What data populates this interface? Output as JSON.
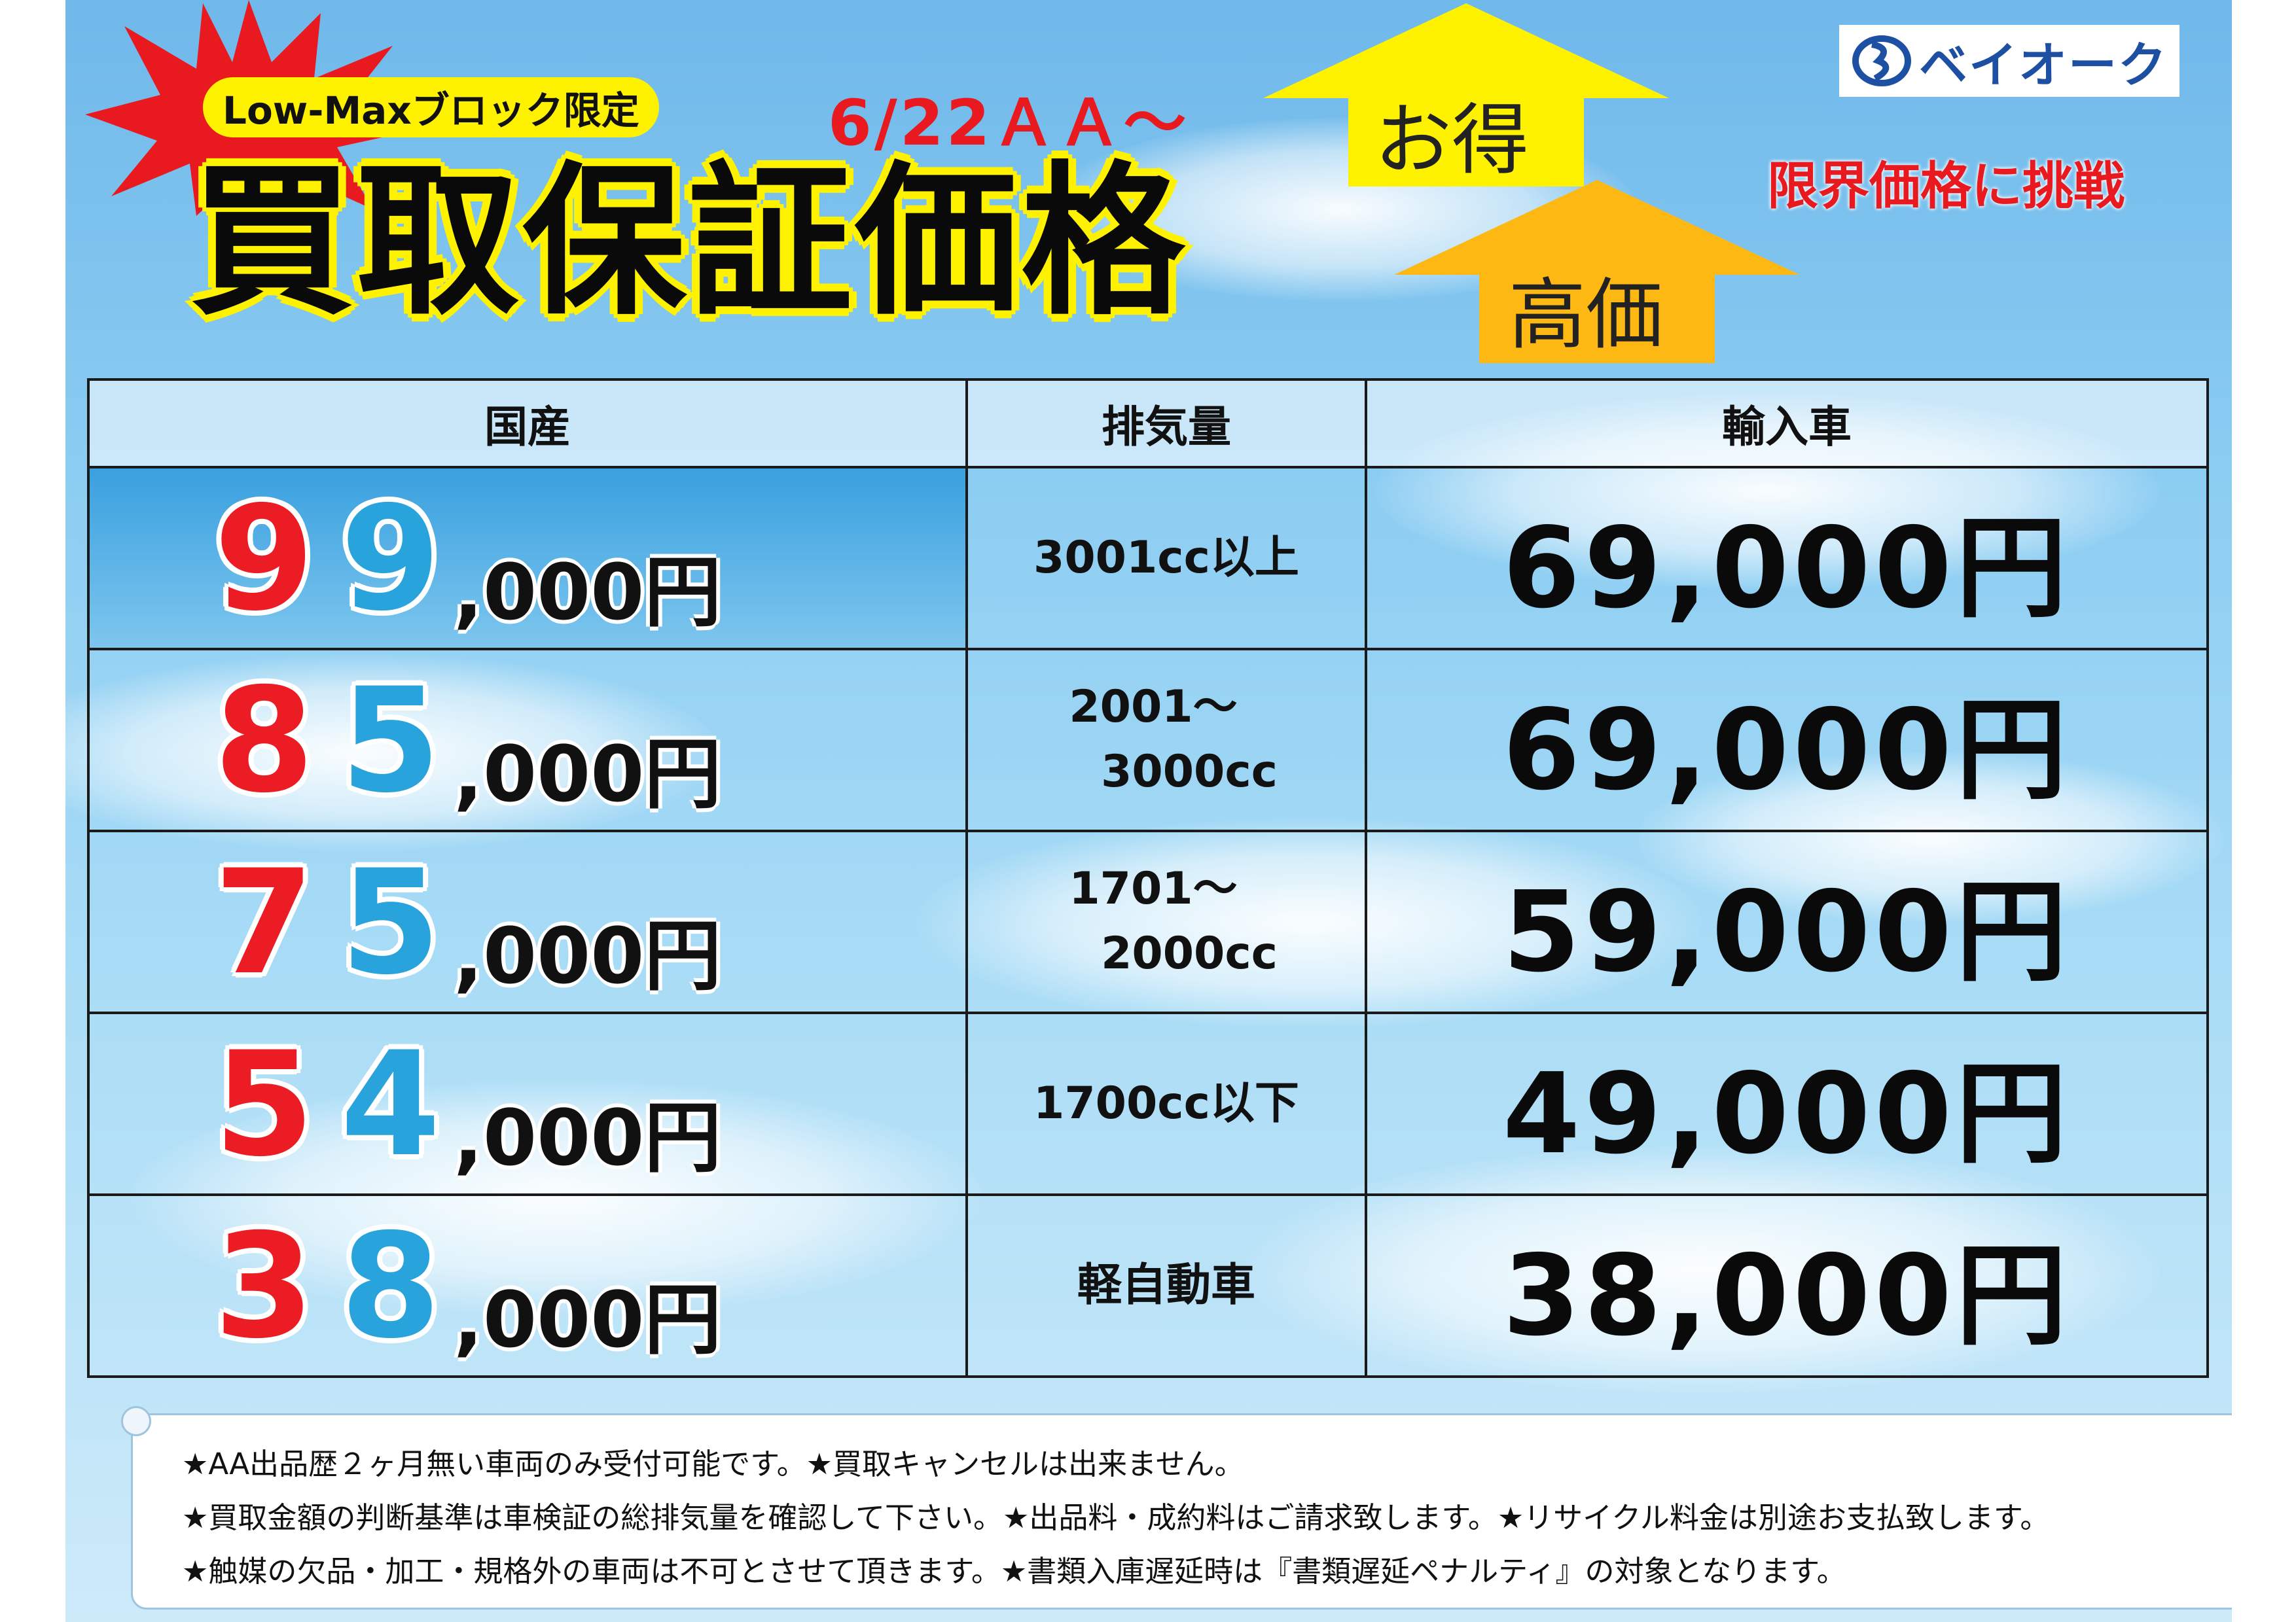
{
  "header": {
    "badge": "Low-Maxブロック限定",
    "date": "6/22ＡＡ～",
    "title": "買取保証価格",
    "arrow_top_label": "お得",
    "arrow_bottom_label": "高価",
    "logo_text": "ベイオーク",
    "slogan": "限界価格に挑戦"
  },
  "table": {
    "headers": [
      "国産",
      "排気量",
      "輸入車"
    ],
    "rows": [
      {
        "d1": "9",
        "d2": "9",
        "suffix": ",000円",
        "disp1": "3001cc以上",
        "disp2": "",
        "imp": "69,000円"
      },
      {
        "d1": "8",
        "d2": "5",
        "suffix": ",000円",
        "disp1": "2001～",
        "disp2": "3000cc",
        "imp": "69,000円"
      },
      {
        "d1": "7",
        "d2": "5",
        "suffix": ",000円",
        "disp1": "1701～",
        "disp2": "2000cc",
        "imp": "59,000円"
      },
      {
        "d1": "5",
        "d2": "4",
        "suffix": ",000円",
        "disp1": "1700cc以下",
        "disp2": "",
        "imp": "49,000円"
      },
      {
        "d1": "3",
        "d2": "8",
        "suffix": ",000円",
        "disp1": "軽自動車",
        "disp2": "",
        "imp": "38,000円"
      }
    ]
  },
  "notes": [
    "★AA出品歴２ヶ月無い車両のみ受付可能です。★買取キャンセルは出来ません。",
    "★買取金額の判断基準は車検証の総排気量を確認して下さい。★出品料・成約料はご請求致します。★リサイクル料金は別途お支払致します。",
    "★触媒の欠品・加工・規格外の車両は不可とさせて頂きます。★書類入庫遅延時は『書類遅延ペナルティ』の対象となります。"
  ],
  "colors": {
    "red": "#ec1c24",
    "blue": "#29a3dc",
    "yellow": "#fff200",
    "arrow_orange": "#fdb813",
    "logo_blue": "#1d4fa3"
  }
}
